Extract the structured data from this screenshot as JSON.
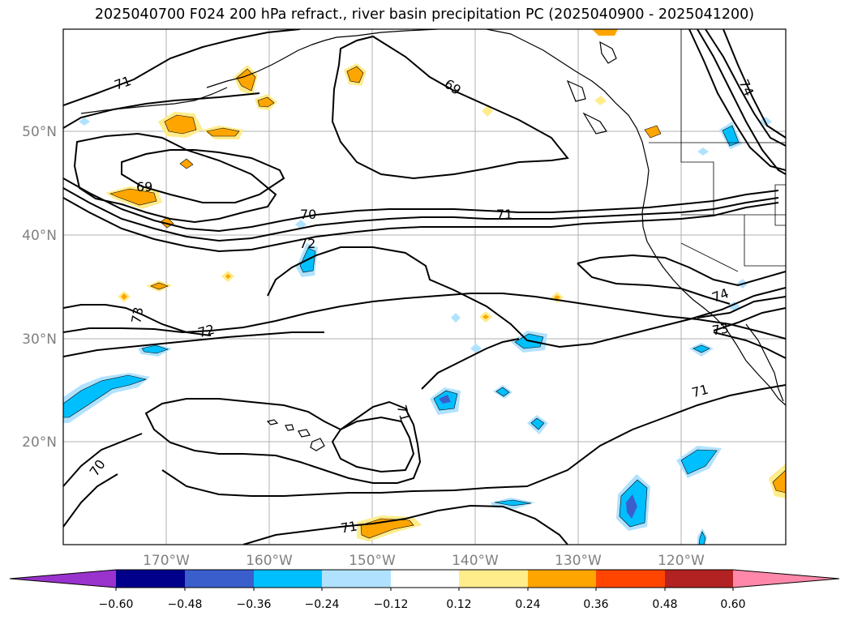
{
  "title": "2025040700 F024 200 hPa refract., river basin precipitation PC (2025040900 - 2025041200)",
  "lat_labels": [
    "50°N",
    "40°N",
    "30°N",
    "20°N"
  ],
  "lon_labels": [
    "170°W",
    "160°W",
    "150°W",
    "140°W",
    "130°W",
    "120°W"
  ],
  "contour_labels": [
    "71",
    "69",
    "74",
    "69",
    "70",
    "71",
    "72",
    "73",
    "72",
    "74",
    "73",
    "71",
    "70",
    "71",
    "71"
  ],
  "colorbar": {
    "ticks": [
      "−0.60",
      "−0.48",
      "−0.36",
      "−0.24",
      "−0.12",
      "0.12",
      "0.24",
      "0.36",
      "0.48",
      "0.60"
    ],
    "colors": [
      "#9a32cd",
      "#00008b",
      "#3a5fcd",
      "#00bfff",
      "#b0e2ff",
      "#ffffff",
      "#ffec8b",
      "#ffa500",
      "#ff4500",
      "#b22222",
      "#ff88aa"
    ]
  }
}
